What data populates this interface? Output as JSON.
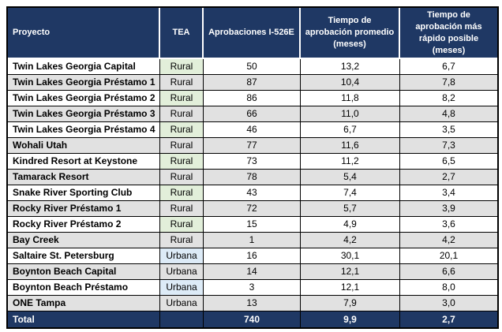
{
  "table": {
    "columns": [
      "Proyecto",
      "TEA",
      "Aprobaciones I-526E",
      "Tiempo de aprobación promedio (meses)",
      "Tiempo de aprobación más rápido posible (meses)"
    ],
    "rows": [
      {
        "project": "Twin Lakes Georgia Capital",
        "tea": "Rural",
        "approvals": "50",
        "avg": "13,2",
        "fastest": "6,7"
      },
      {
        "project": "Twin Lakes Georgia Préstamo 1",
        "tea": "Rural",
        "approvals": "87",
        "avg": "10,4",
        "fastest": "7,8"
      },
      {
        "project": "Twin Lakes Georgia Préstamo 2",
        "tea": "Rural",
        "approvals": "86",
        "avg": "11,8",
        "fastest": "8,2"
      },
      {
        "project": "Twin Lakes Georgia Préstamo 3",
        "tea": "Rural",
        "approvals": "66",
        "avg": "11,0",
        "fastest": "4,8"
      },
      {
        "project": "Twin Lakes Georgia Préstamo 4",
        "tea": "Rural",
        "approvals": "46",
        "avg": "6,7",
        "fastest": "3,5"
      },
      {
        "project": "Wohali Utah",
        "tea": "Rural",
        "approvals": "77",
        "avg": "11,6",
        "fastest": "7,3"
      },
      {
        "project": "Kindred Resort at Keystone",
        "tea": "Rural",
        "approvals": "73",
        "avg": "11,2",
        "fastest": "6,5"
      },
      {
        "project": "Tamarack Resort",
        "tea": "Rural",
        "approvals": "78",
        "avg": "5,4",
        "fastest": "2,7"
      },
      {
        "project": "Snake River Sporting Club",
        "tea": "Rural",
        "approvals": "43",
        "avg": "7,4",
        "fastest": "3,4"
      },
      {
        "project": "Rocky River Préstamo 1",
        "tea": "Rural",
        "approvals": "72",
        "avg": "5,7",
        "fastest": "3,9"
      },
      {
        "project": "Rocky River Préstamo 2",
        "tea": "Rural",
        "approvals": "15",
        "avg": "4,9",
        "fastest": "3,6"
      },
      {
        "project": "Bay Creek",
        "tea": "Rural",
        "approvals": "1",
        "avg": "4,2",
        "fastest": "4,2"
      },
      {
        "project": "Saltaire St. Petersburg",
        "tea": "Urbana",
        "approvals": "16",
        "avg": "30,1",
        "fastest": "20,1"
      },
      {
        "project": "Boynton Beach Capital",
        "tea": "Urbana",
        "approvals": "14",
        "avg": "12,1",
        "fastest": "6,6"
      },
      {
        "project": "Boynton Beach Préstamo",
        "tea": "Urbana",
        "approvals": "3",
        "avg": "12,1",
        "fastest": "8,0"
      },
      {
        "project": "ONE Tampa",
        "tea": "Urbana",
        "approvals": "13",
        "avg": "7,9",
        "fastest": "3,0"
      }
    ],
    "total": {
      "label": "Total",
      "tea": "",
      "approvals": "740",
      "avg": "9,9",
      "fastest": "2,7"
    }
  },
  "colors": {
    "header_bg": "#1F3864",
    "header_text": "#FFFFFF",
    "stripe_bg": "#E1E1E1",
    "rural_bg": "#E2EFDA",
    "urbana_bg": "#DDEBF7",
    "border": "#000000"
  }
}
